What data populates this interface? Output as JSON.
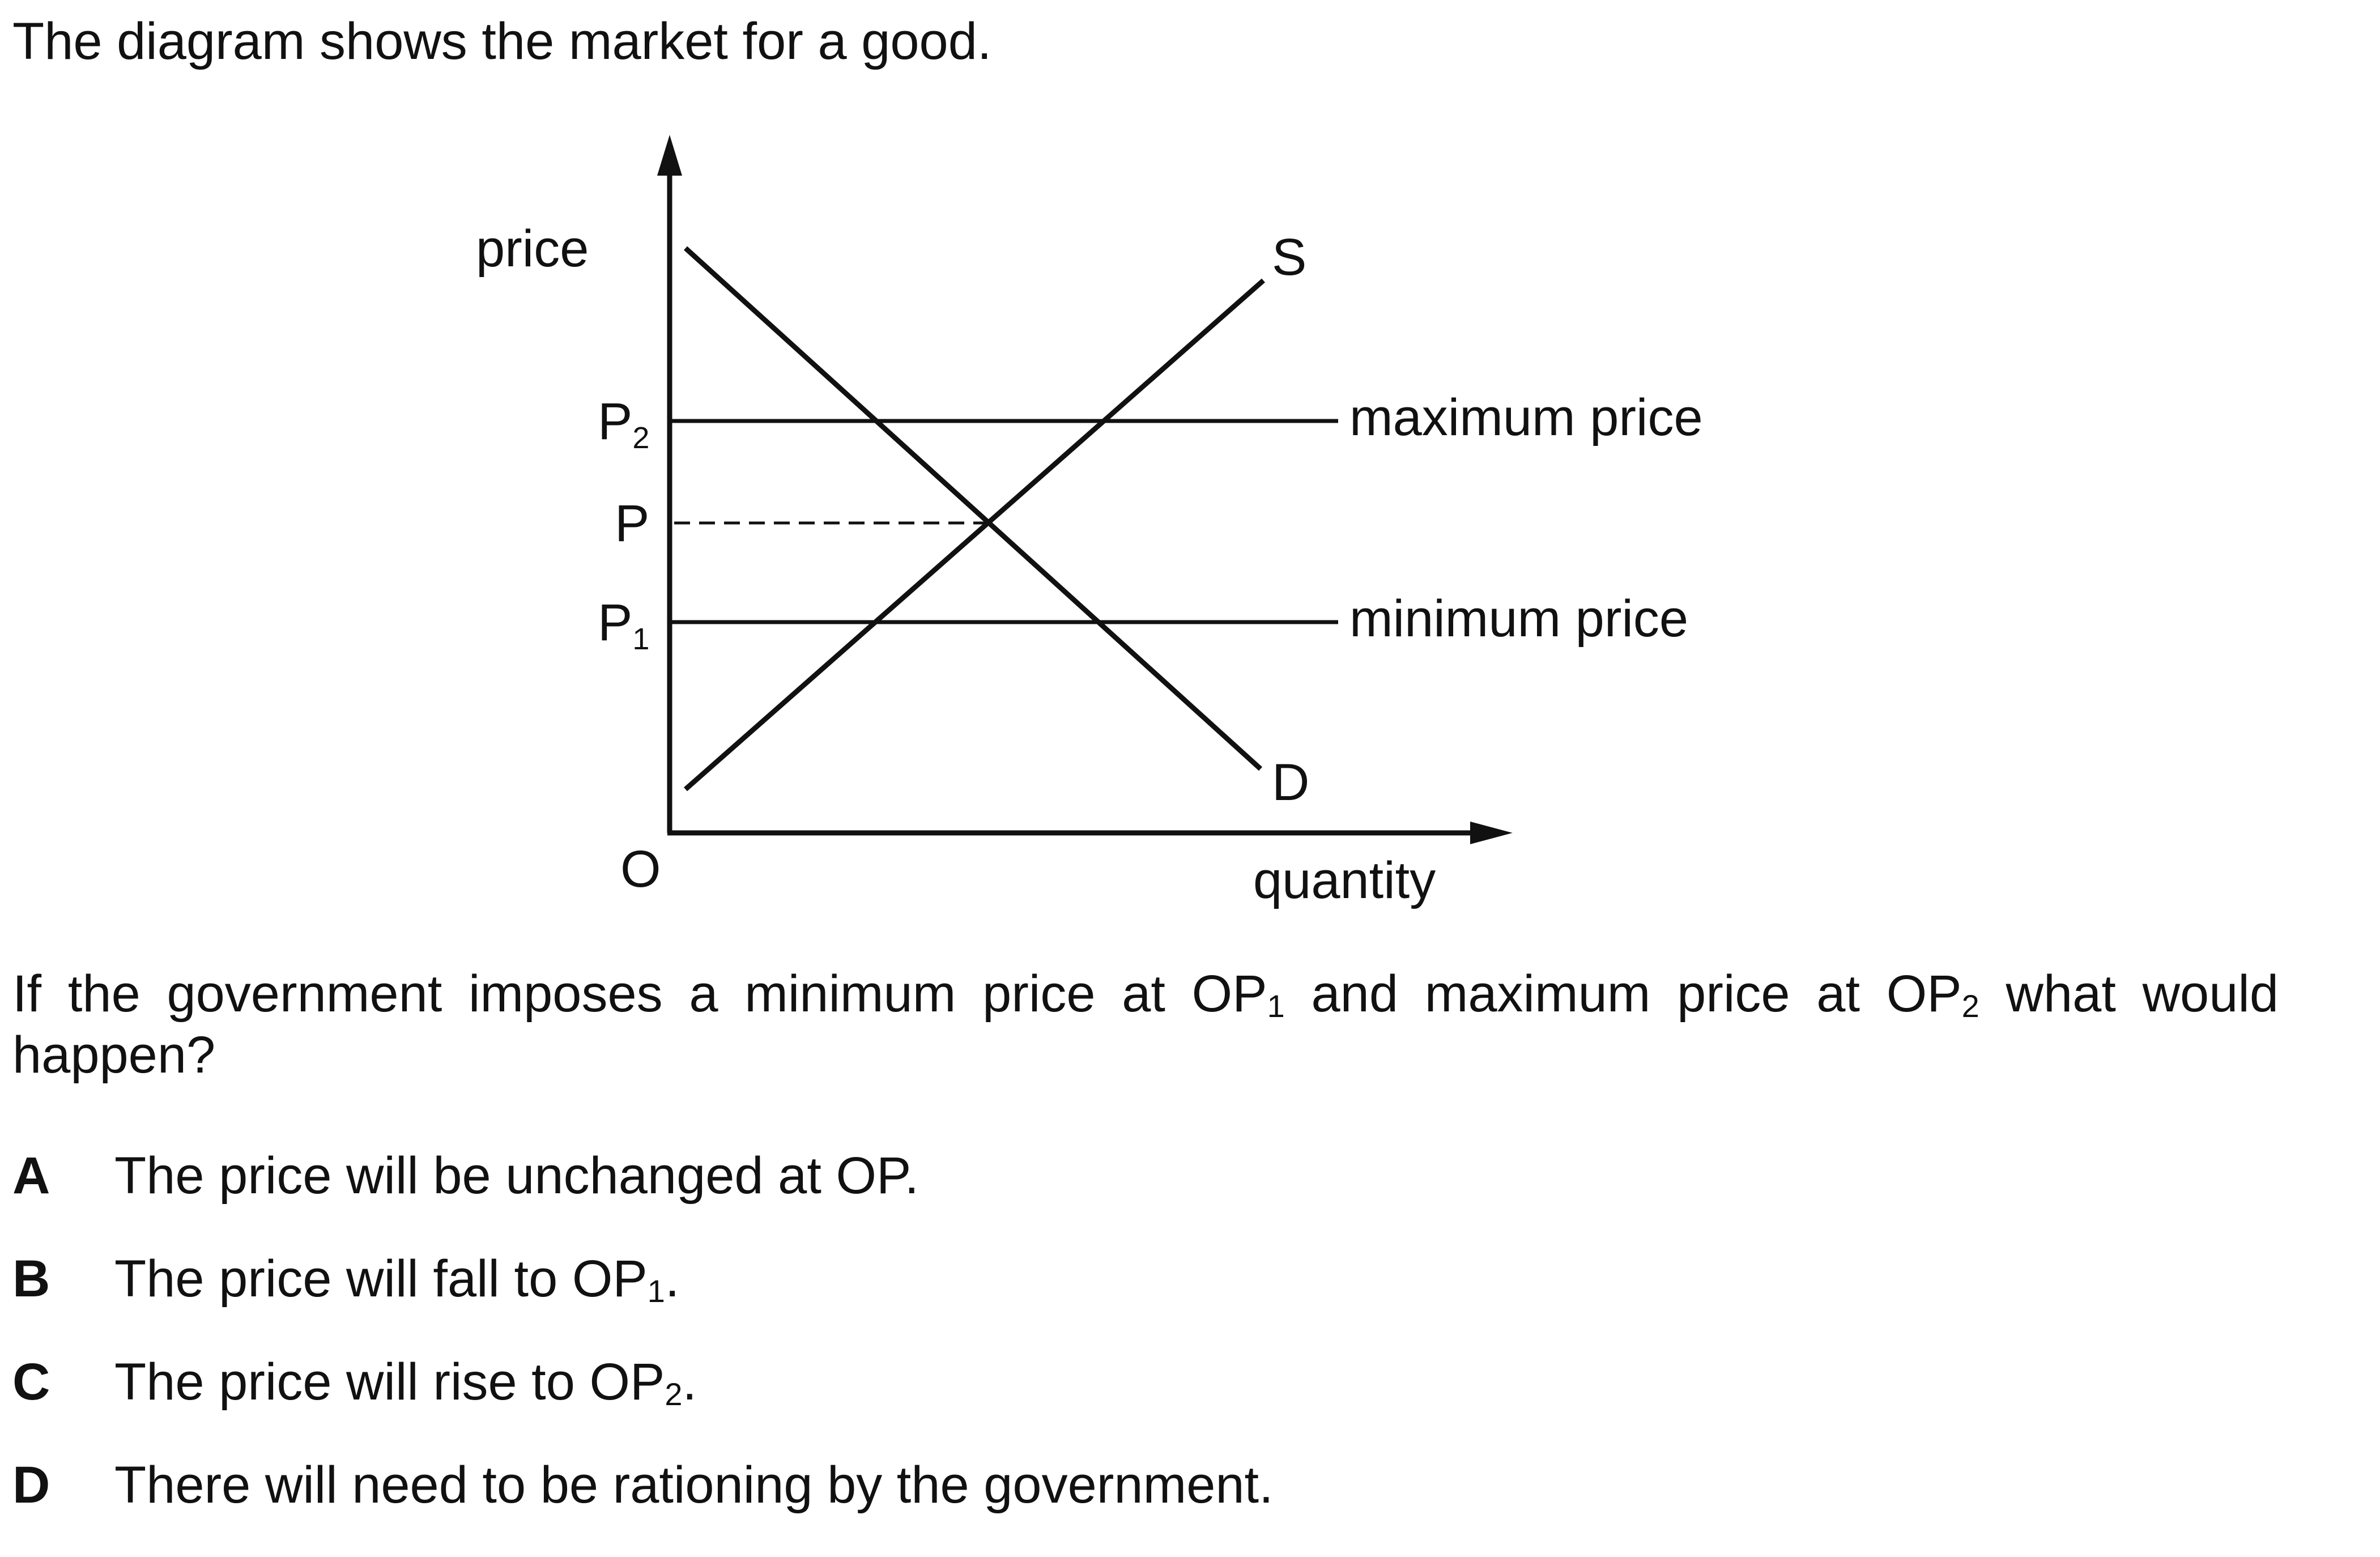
{
  "intro": "The diagram shows the market for a good.",
  "diagram": {
    "y_axis_label": "price",
    "x_axis_label": "quantity",
    "origin_label": "O",
    "price_levels": [
      {
        "name": "P",
        "subscript": "2",
        "line_label": "maximum price",
        "line_style": "solid"
      },
      {
        "name": "P",
        "subscript": "",
        "line_label": "",
        "line_style": "dashed"
      },
      {
        "name": "P",
        "subscript": "1",
        "line_label": "minimum price",
        "line_style": "solid"
      }
    ],
    "supply_label": "S",
    "demand_label": "D"
  },
  "question": {
    "part1": "If the government imposes a minimum price at OP",
    "sub1": "1",
    "part2": " and maximum price at OP",
    "sub2": "2",
    "part3": " what would happen?"
  },
  "options": [
    {
      "letter": "A",
      "text": "The price will be unchanged at OP.",
      "sub": "",
      "after": ""
    },
    {
      "letter": "B",
      "text": "The price will fall to OP",
      "sub": "1",
      "after": "."
    },
    {
      "letter": "C",
      "text": "The price will rise to OP",
      "sub": "2",
      "after": "."
    },
    {
      "letter": "D",
      "text": "There will need to be rationing by the government.",
      "sub": "",
      "after": ""
    }
  ]
}
